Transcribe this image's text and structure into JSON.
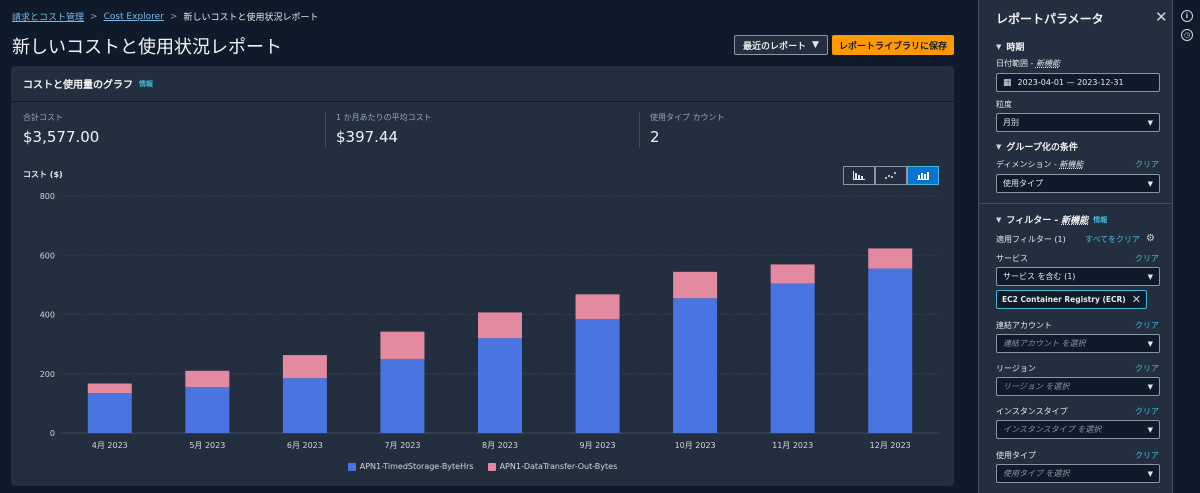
{
  "breadcrumb": {
    "items": [
      "請求とコスト管理",
      "Cost Explorer",
      "新しいコストと使用状況レポート"
    ]
  },
  "page": {
    "title": "新しいコストと使用状況レポート",
    "recent_reports_label": "最近のレポート",
    "save_label": "レポートライブラリに保存"
  },
  "panel": {
    "title": "コストと使用量のグラフ",
    "info": "情報"
  },
  "stats": [
    {
      "label": "合計コスト",
      "value": "$3,577.00"
    },
    {
      "label": "1 か月あたりの平均コスト",
      "value": "$397.44"
    },
    {
      "label": "使用タイプ カウント",
      "value": "2"
    }
  ],
  "chart_data": {
    "type": "bar",
    "stacked": true,
    "ylabel": "コスト ($)",
    "ylim": [
      0,
      800
    ],
    "yticks": [
      0,
      200,
      400,
      600,
      800
    ],
    "grid": true,
    "legend_position": "bottom",
    "categories": [
      "4月 2023",
      "5月 2023",
      "6月 2023",
      "7月 2023",
      "8月 2023",
      "9月 2023",
      "10月 2023",
      "11月 2023",
      "12月 2023"
    ],
    "series": [
      {
        "name": "APN1-TimedStorage-ByteHrs",
        "color": "#4a74e0",
        "values": [
          135,
          155,
          185,
          250,
          320,
          385,
          455,
          505,
          555
        ]
      },
      {
        "name": "APN1-DataTransfer-Out-Bytes",
        "color": "#e48aa0",
        "values": [
          32,
          55,
          78,
          92,
          87,
          83,
          89,
          64,
          68
        ]
      }
    ]
  },
  "side": {
    "title": "レポートパラメータ",
    "time_section": "時期",
    "date_range_label": "日付範囲 - ",
    "new_feature": "新機能",
    "date_range_value": "2023-04-01 — 2023-12-31",
    "granularity_label": "粒度",
    "granularity_value": "月別",
    "group_section": "グループ化の条件",
    "dimension_label": "ディメンション - ",
    "dimension_value": "使用タイプ",
    "clear": "クリア",
    "filter_section": "フィルター - ",
    "filter_info": "情報",
    "applied_filters": "適用フィルター (1)",
    "clear_all": "すべてをクリア",
    "service_label": "サービス",
    "service_value": "サービス を含む (1)",
    "service_token": "EC2 Container Registry (ECR)",
    "linked_account_label": "連結アカウント",
    "linked_account_placeholder": "連結アカウント を選択",
    "region_label": "リージョン",
    "region_placeholder": "リージョン を選択",
    "instance_type_label": "インスタンスタイプ",
    "instance_type_placeholder": "インスタンスタイプ を選択",
    "usage_type_label": "使用タイプ",
    "usage_type_placeholder": "使用タイプ を選択"
  }
}
